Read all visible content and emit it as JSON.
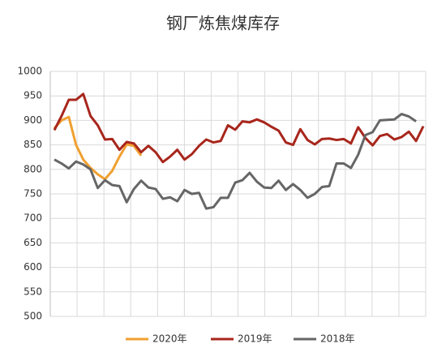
{
  "chart_data": {
    "type": "line",
    "title": "钢厂炼焦煤库存",
    "categories": [
      null,
      null,
      null,
      null,
      null,
      null,
      null,
      null,
      null,
      null,
      null,
      null,
      null,
      null,
      null,
      null,
      null,
      null,
      null,
      null,
      null,
      null,
      null,
      null,
      null,
      null,
      null,
      null,
      null,
      null,
      null,
      null,
      null,
      null,
      null,
      null,
      null,
      null,
      null,
      null,
      null,
      null,
      null,
      null,
      null,
      null,
      null,
      null,
      null,
      null,
      null,
      null
    ],
    "series": [
      {
        "name": "2020年",
        "color": "#f0a030",
        "values": [
          884,
          900,
          907,
          850,
          820,
          803,
          790,
          780,
          797,
          826,
          851,
          848,
          828,
          null,
          null,
          null,
          null,
          null,
          null,
          null,
          null,
          null,
          null,
          null,
          null,
          null,
          null,
          null,
          null,
          null,
          null,
          null,
          null,
          null,
          null,
          null,
          null,
          null,
          null,
          null,
          null,
          null,
          null,
          null,
          null,
          null,
          null,
          null,
          null,
          null,
          null,
          null
        ]
      },
      {
        "name": "2019年",
        "color": "#a8261c",
        "values": [
          880,
          909,
          942,
          942,
          954,
          909,
          890,
          861,
          862,
          840,
          856,
          853,
          835,
          848,
          835,
          815,
          826,
          840,
          820,
          831,
          848,
          861,
          855,
          858,
          890,
          881,
          898,
          896,
          902,
          896,
          887,
          879,
          855,
          850,
          882,
          860,
          851,
          862,
          863,
          860,
          862,
          853,
          886,
          864,
          849,
          868,
          872,
          861,
          866,
          877,
          858,
          888
        ]
      },
      {
        "name": "2018年",
        "color": "#666666",
        "values": [
          820,
          812,
          802,
          816,
          810,
          800,
          762,
          778,
          768,
          766,
          733,
          760,
          777,
          763,
          760,
          740,
          743,
          735,
          758,
          750,
          752,
          720,
          723,
          742,
          742,
          773,
          778,
          793,
          775,
          763,
          762,
          777,
          758,
          770,
          758,
          742,
          750,
          764,
          766,
          812,
          812,
          803,
          830,
          870,
          876,
          900,
          901,
          902,
          913,
          908,
          898,
          null
        ]
      }
    ],
    "ylim": [
      500,
      1000
    ],
    "yticks": [
      500,
      550,
      600,
      650,
      700,
      750,
      800,
      850,
      900,
      950,
      1000
    ],
    "grid": true
  }
}
